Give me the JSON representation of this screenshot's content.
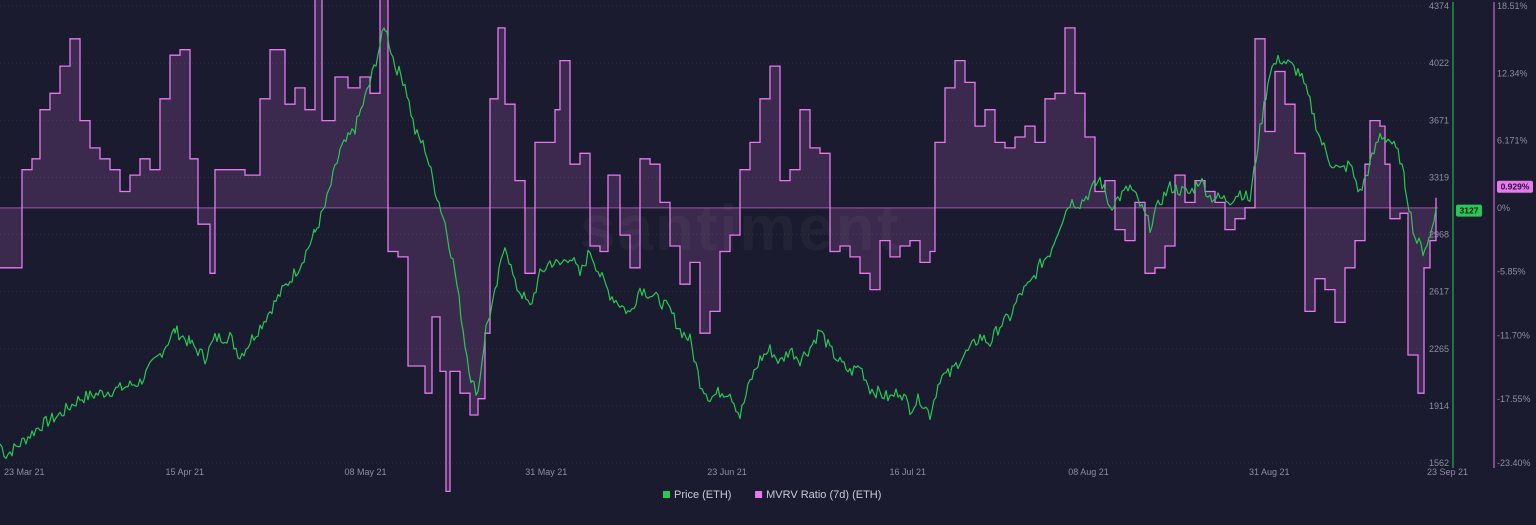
{
  "chart_data": {
    "type": "line",
    "title": "",
    "watermark": "santiment",
    "colors": {
      "background": "#1a1b2e",
      "price": "#26c953",
      "mvrv_line": "#e679ef",
      "mvrv_fill": "#e679ef",
      "grid": "#2c2e44",
      "tick": "#8c8ea3"
    },
    "x_ticks": [
      "23 Mar 21",
      "15 Apr 21",
      "08 May 21",
      "31 May 21",
      "23 Jun 21",
      "16 Jul 21",
      "08 Aug 21",
      "31 Aug 21",
      "23 Sep 21"
    ],
    "y_left": {
      "label": "",
      "ticks": [
        "4374",
        "4022",
        "3671",
        "3319",
        "2968",
        "2617",
        "2265",
        "1914",
        "1562"
      ],
      "range": [
        1562,
        4374
      ]
    },
    "y_right": {
      "label": "",
      "ticks": [
        "18.51%",
        "12.34%",
        "6.171%",
        "0%",
        "-5.85%",
        "-11.70%",
        "-17.55%",
        "-23.40%"
      ],
      "range": [
        -23.4,
        18.51
      ]
    },
    "series": [
      {
        "name": "Price (ETH)",
        "axis": "left",
        "current_label": "3127",
        "keypoints": [
          [
            0,
            1680
          ],
          [
            6,
            1610
          ],
          [
            20,
            1680
          ],
          [
            40,
            1790
          ],
          [
            60,
            1860
          ],
          [
            80,
            1960
          ],
          [
            100,
            1990
          ],
          [
            120,
            2020
          ],
          [
            140,
            2060
          ],
          [
            160,
            2230
          ],
          [
            175,
            2380
          ],
          [
            190,
            2300
          ],
          [
            205,
            2210
          ],
          [
            215,
            2330
          ],
          [
            230,
            2340
          ],
          [
            240,
            2220
          ],
          [
            260,
            2400
          ],
          [
            280,
            2600
          ],
          [
            300,
            2780
          ],
          [
            315,
            2980
          ],
          [
            325,
            3140
          ],
          [
            340,
            3480
          ],
          [
            355,
            3620
          ],
          [
            370,
            3900
          ],
          [
            385,
            4250
          ],
          [
            395,
            4010
          ],
          [
            405,
            3900
          ],
          [
            415,
            3600
          ],
          [
            425,
            3500
          ],
          [
            435,
            3250
          ],
          [
            445,
            3040
          ],
          [
            455,
            2740
          ],
          [
            465,
            2300
          ],
          [
            472,
            2050
          ],
          [
            478,
            2000
          ],
          [
            486,
            2390
          ],
          [
            495,
            2600
          ],
          [
            505,
            2920
          ],
          [
            515,
            2660
          ],
          [
            522,
            2600
          ],
          [
            530,
            2520
          ],
          [
            540,
            2720
          ],
          [
            550,
            2800
          ],
          [
            560,
            2780
          ],
          [
            570,
            2840
          ],
          [
            580,
            2720
          ],
          [
            590,
            2870
          ],
          [
            600,
            2720
          ],
          [
            610,
            2600
          ],
          [
            620,
            2540
          ],
          [
            630,
            2480
          ],
          [
            640,
            2640
          ],
          [
            650,
            2600
          ],
          [
            660,
            2560
          ],
          [
            670,
            2500
          ],
          [
            680,
            2380
          ],
          [
            690,
            2320
          ],
          [
            700,
            2060
          ],
          [
            710,
            1960
          ],
          [
            720,
            2000
          ],
          [
            730,
            2000
          ],
          [
            740,
            1850
          ],
          [
            750,
            2060
          ],
          [
            760,
            2200
          ],
          [
            770,
            2260
          ],
          [
            780,
            2180
          ],
          [
            790,
            2260
          ],
          [
            800,
            2200
          ],
          [
            810,
            2270
          ],
          [
            820,
            2380
          ],
          [
            830,
            2260
          ],
          [
            840,
            2180
          ],
          [
            850,
            2120
          ],
          [
            860,
            2160
          ],
          [
            870,
            2020
          ],
          [
            880,
            1990
          ],
          [
            890,
            1960
          ],
          [
            900,
            2010
          ],
          [
            910,
            1900
          ],
          [
            920,
            1960
          ],
          [
            930,
            1860
          ],
          [
            940,
            2090
          ],
          [
            950,
            2110
          ],
          [
            960,
            2200
          ],
          [
            970,
            2260
          ],
          [
            980,
            2340
          ],
          [
            990,
            2300
          ],
          [
            1000,
            2410
          ],
          [
            1010,
            2460
          ],
          [
            1020,
            2600
          ],
          [
            1030,
            2660
          ],
          [
            1040,
            2780
          ],
          [
            1050,
            2860
          ],
          [
            1060,
            3030
          ],
          [
            1070,
            3170
          ],
          [
            1080,
            3160
          ],
          [
            1090,
            3230
          ],
          [
            1100,
            3310
          ],
          [
            1110,
            3140
          ],
          [
            1120,
            3200
          ],
          [
            1130,
            3260
          ],
          [
            1140,
            3150
          ],
          [
            1150,
            3020
          ],
          [
            1160,
            3170
          ],
          [
            1170,
            3260
          ],
          [
            1180,
            3240
          ],
          [
            1190,
            3220
          ],
          [
            1200,
            3310
          ],
          [
            1210,
            3200
          ],
          [
            1220,
            3190
          ],
          [
            1230,
            3180
          ],
          [
            1240,
            3230
          ],
          [
            1250,
            3180
          ],
          [
            1260,
            3610
          ],
          [
            1270,
            3980
          ],
          [
            1280,
            4050
          ],
          [
            1290,
            4010
          ],
          [
            1300,
            3960
          ],
          [
            1310,
            3780
          ],
          [
            1320,
            3560
          ],
          [
            1330,
            3420
          ],
          [
            1340,
            3360
          ],
          [
            1350,
            3400
          ],
          [
            1360,
            3220
          ],
          [
            1370,
            3400
          ],
          [
            1380,
            3580
          ],
          [
            1390,
            3550
          ],
          [
            1400,
            3440
          ],
          [
            1405,
            3280
          ],
          [
            1415,
            2950
          ],
          [
            1423,
            2870
          ],
          [
            1430,
            2950
          ],
          [
            1436,
            3127
          ]
        ]
      },
      {
        "name": "MVRV Ratio (7d) (ETH)",
        "axis": "right",
        "current_label": "0.929%",
        "keypoints": [
          [
            0,
            -5.5
          ],
          [
            20,
            -5.5
          ],
          [
            22,
            3.5
          ],
          [
            32,
            4.5
          ],
          [
            40,
            9.0
          ],
          [
            50,
            10.5
          ],
          [
            60,
            13.0
          ],
          [
            70,
            15.5
          ],
          [
            80,
            8.0
          ],
          [
            90,
            5.5
          ],
          [
            100,
            4.5
          ],
          [
            110,
            3.5
          ],
          [
            120,
            1.5
          ],
          [
            130,
            3.0
          ],
          [
            140,
            4.5
          ],
          [
            150,
            3.5
          ],
          [
            160,
            10.0
          ],
          [
            170,
            14.0
          ],
          [
            180,
            14.5
          ],
          [
            190,
            4.5
          ],
          [
            198,
            -1.5
          ],
          [
            210,
            -6.0
          ],
          [
            215,
            3.5
          ],
          [
            225,
            3.5
          ],
          [
            245,
            3.0
          ],
          [
            260,
            10.0
          ],
          [
            270,
            14.5
          ],
          [
            285,
            9.5
          ],
          [
            295,
            11.0
          ],
          [
            305,
            9.0
          ],
          [
            315,
            20.0
          ],
          [
            322,
            8.0
          ],
          [
            335,
            12.0
          ],
          [
            348,
            11.0
          ],
          [
            360,
            12.0
          ],
          [
            370,
            10.5
          ],
          [
            380,
            20.0
          ],
          [
            388,
            -4.0
          ],
          [
            398,
            -4.5
          ],
          [
            408,
            -14.5
          ],
          [
            418,
            -14.5
          ],
          [
            425,
            -17.0
          ],
          [
            432,
            -10.0
          ],
          [
            440,
            -15.0
          ],
          [
            446,
            -26.0
          ],
          [
            450,
            -15.0
          ],
          [
            460,
            -17.0
          ],
          [
            470,
            -19.0
          ],
          [
            478,
            -17.5
          ],
          [
            485,
            -11.5
          ],
          [
            490,
            10.0
          ],
          [
            498,
            16.5
          ],
          [
            505,
            9.5
          ],
          [
            515,
            2.5
          ],
          [
            525,
            -6.0
          ],
          [
            535,
            6.0
          ],
          [
            545,
            6.0
          ],
          [
            555,
            9.0
          ],
          [
            560,
            13.5
          ],
          [
            570,
            4.0
          ],
          [
            580,
            5.0
          ],
          [
            590,
            -3.5
          ],
          [
            600,
            -4.0
          ],
          [
            608,
            3.0
          ],
          [
            620,
            -2.5
          ],
          [
            630,
            -5.5
          ],
          [
            640,
            4.5
          ],
          [
            650,
            4.0
          ],
          [
            660,
            0.5
          ],
          [
            670,
            -3.5
          ],
          [
            680,
            -7.0
          ],
          [
            690,
            -5.0
          ],
          [
            700,
            -11.5
          ],
          [
            710,
            -9.5
          ],
          [
            720,
            -4.0
          ],
          [
            730,
            -2.5
          ],
          [
            740,
            3.5
          ],
          [
            750,
            6.0
          ],
          [
            760,
            10.0
          ],
          [
            770,
            13.0
          ],
          [
            780,
            2.5
          ],
          [
            790,
            3.5
          ],
          [
            800,
            9.0
          ],
          [
            810,
            5.5
          ],
          [
            820,
            5.0
          ],
          [
            830,
            -4.0
          ],
          [
            840,
            -3.5
          ],
          [
            850,
            -4.5
          ],
          [
            860,
            -6.0
          ],
          [
            870,
            -7.5
          ],
          [
            880,
            -3.0
          ],
          [
            890,
            -4.5
          ],
          [
            900,
            -3.5
          ],
          [
            910,
            -3.0
          ],
          [
            920,
            -5.0
          ],
          [
            930,
            -4.0
          ],
          [
            935,
            6.0
          ],
          [
            945,
            11.0
          ],
          [
            955,
            13.5
          ],
          [
            965,
            11.5
          ],
          [
            975,
            7.5
          ],
          [
            985,
            9.0
          ],
          [
            995,
            6.0
          ],
          [
            1005,
            5.5
          ],
          [
            1015,
            6.5
          ],
          [
            1025,
            7.5
          ],
          [
            1035,
            6.0
          ],
          [
            1045,
            10.0
          ],
          [
            1055,
            10.5
          ],
          [
            1065,
            16.5
          ],
          [
            1075,
            10.5
          ],
          [
            1085,
            6.5
          ],
          [
            1095,
            1.5
          ],
          [
            1105,
            2.5
          ],
          [
            1115,
            -2.0
          ],
          [
            1125,
            -3.0
          ],
          [
            1135,
            0.5
          ],
          [
            1145,
            -6.0
          ],
          [
            1155,
            -5.5
          ],
          [
            1165,
            -3.5
          ],
          [
            1175,
            3.0
          ],
          [
            1185,
            0.5
          ],
          [
            1195,
            2.5
          ],
          [
            1205,
            1.5
          ],
          [
            1215,
            0.5
          ],
          [
            1225,
            -2.0
          ],
          [
            1235,
            -1.0
          ],
          [
            1245,
            0.0
          ],
          [
            1255,
            15.5
          ],
          [
            1265,
            7.0
          ],
          [
            1275,
            12.5
          ],
          [
            1285,
            9.5
          ],
          [
            1295,
            5.0
          ],
          [
            1305,
            -9.5
          ],
          [
            1315,
            -6.5
          ],
          [
            1325,
            -7.5
          ],
          [
            1335,
            -10.5
          ],
          [
            1345,
            -5.5
          ],
          [
            1355,
            -3.0
          ],
          [
            1365,
            4.0
          ],
          [
            1370,
            8.0
          ],
          [
            1380,
            7.5
          ],
          [
            1385,
            4.0
          ],
          [
            1390,
            -1.0
          ],
          [
            1400,
            -0.5
          ],
          [
            1408,
            -13.5
          ],
          [
            1418,
            -17.0
          ],
          [
            1424,
            -5.5
          ],
          [
            1430,
            -3.0
          ],
          [
            1436,
            0.93
          ]
        ]
      }
    ],
    "legend": {
      "position": "bottom-center",
      "items": [
        {
          "label": "Price (ETH)",
          "color": "#26c953"
        },
        {
          "label": "MVRV Ratio (7d) (ETH)",
          "color": "#e679ef"
        }
      ]
    }
  }
}
